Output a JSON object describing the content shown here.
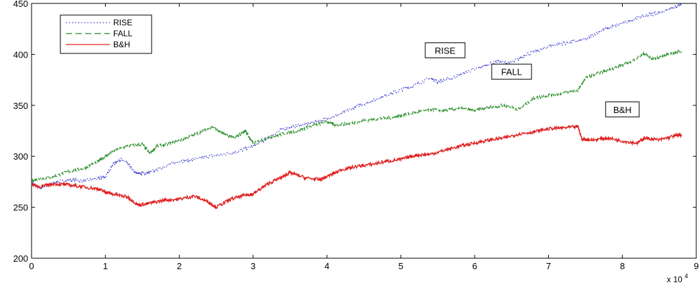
{
  "chart_data": {
    "type": "line",
    "title": "",
    "xlabel": "",
    "ylabel": "",
    "x_multiplier_label": "x 10",
    "x_multiplier_exponent": "4",
    "xlim": [
      0,
      9
    ],
    "ylim": [
      200,
      450
    ],
    "xticks": [
      "0",
      "1",
      "2",
      "3",
      "4",
      "5",
      "6",
      "7",
      "8",
      "9"
    ],
    "yticks": [
      "200",
      "250",
      "300",
      "350",
      "400",
      "450"
    ],
    "grid": false,
    "legend_position": "top-left",
    "series": [
      {
        "name": "RISE",
        "color": "#3333cc",
        "style": "dotted",
        "points": [
          [
            0,
            275
          ],
          [
            0.1,
            268
          ],
          [
            0.2,
            272
          ],
          [
            0.3,
            274
          ],
          [
            0.5,
            277
          ],
          [
            0.7,
            276
          ],
          [
            0.9,
            278
          ],
          [
            1.0,
            280
          ],
          [
            1.1,
            292
          ],
          [
            1.2,
            297
          ],
          [
            1.3,
            293
          ],
          [
            1.4,
            284
          ],
          [
            1.5,
            283
          ],
          [
            1.6,
            284
          ],
          [
            1.8,
            290
          ],
          [
            2.0,
            295
          ],
          [
            2.2,
            297
          ],
          [
            2.4,
            300
          ],
          [
            2.6,
            302
          ],
          [
            2.8,
            305
          ],
          [
            3.0,
            310
          ],
          [
            3.2,
            318
          ],
          [
            3.4,
            327
          ],
          [
            3.6,
            330
          ],
          [
            3.8,
            333
          ],
          [
            4.0,
            337
          ],
          [
            4.2,
            342
          ],
          [
            4.4,
            349
          ],
          [
            4.6,
            354
          ],
          [
            4.8,
            360
          ],
          [
            5.0,
            365
          ],
          [
            5.2,
            370
          ],
          [
            5.4,
            377
          ],
          [
            5.5,
            373
          ],
          [
            5.7,
            377
          ],
          [
            5.9,
            383
          ],
          [
            6.1,
            388
          ],
          [
            6.3,
            393
          ],
          [
            6.5,
            392
          ],
          [
            6.7,
            400
          ],
          [
            6.9,
            405
          ],
          [
            7.1,
            410
          ],
          [
            7.3,
            412
          ],
          [
            7.5,
            415
          ],
          [
            7.7,
            423
          ],
          [
            7.9,
            428
          ],
          [
            8.1,
            433
          ],
          [
            8.3,
            438
          ],
          [
            8.5,
            441
          ],
          [
            8.7,
            446
          ],
          [
            8.8,
            449
          ]
        ]
      },
      {
        "name": "FALL",
        "color": "#228b22",
        "style": "dashed",
        "points": [
          [
            0,
            276
          ],
          [
            0.1,
            278
          ],
          [
            0.3,
            280
          ],
          [
            0.5,
            285
          ],
          [
            0.7,
            288
          ],
          [
            0.9,
            295
          ],
          [
            1.0,
            300
          ],
          [
            1.1,
            305
          ],
          [
            1.3,
            310
          ],
          [
            1.5,
            312
          ],
          [
            1.6,
            303
          ],
          [
            1.7,
            310
          ],
          [
            1.9,
            313
          ],
          [
            2.1,
            318
          ],
          [
            2.3,
            324
          ],
          [
            2.45,
            329
          ],
          [
            2.6,
            322
          ],
          [
            2.75,
            318
          ],
          [
            2.9,
            325
          ],
          [
            2.95,
            318
          ],
          [
            3.0,
            313
          ],
          [
            3.2,
            318
          ],
          [
            3.4,
            322
          ],
          [
            3.6,
            325
          ],
          [
            3.8,
            330
          ],
          [
            4.0,
            334
          ],
          [
            4.1,
            331
          ],
          [
            4.3,
            332
          ],
          [
            4.5,
            335
          ],
          [
            4.7,
            337
          ],
          [
            4.9,
            338
          ],
          [
            5.0,
            340
          ],
          [
            5.2,
            343
          ],
          [
            5.4,
            346
          ],
          [
            5.6,
            345
          ],
          [
            5.8,
            347
          ],
          [
            6.0,
            345
          ],
          [
            6.2,
            348
          ],
          [
            6.4,
            350
          ],
          [
            6.6,
            346
          ],
          [
            6.8,
            357
          ],
          [
            7.0,
            360
          ],
          [
            7.2,
            362
          ],
          [
            7.4,
            365
          ],
          [
            7.5,
            377
          ],
          [
            7.7,
            382
          ],
          [
            7.9,
            387
          ],
          [
            8.1,
            392
          ],
          [
            8.3,
            401
          ],
          [
            8.4,
            395
          ],
          [
            8.6,
            400
          ],
          [
            8.8,
            403
          ]
        ]
      },
      {
        "name": "B&H",
        "color": "#e02020",
        "style": "solid",
        "points": [
          [
            0,
            273
          ],
          [
            0.1,
            270
          ],
          [
            0.3,
            273
          ],
          [
            0.5,
            272
          ],
          [
            0.7,
            270
          ],
          [
            0.9,
            268
          ],
          [
            1.0,
            265
          ],
          [
            1.1,
            263
          ],
          [
            1.3,
            260
          ],
          [
            1.45,
            252
          ],
          [
            1.6,
            254
          ],
          [
            1.8,
            257
          ],
          [
            2.0,
            258
          ],
          [
            2.2,
            261
          ],
          [
            2.4,
            255
          ],
          [
            2.5,
            250
          ],
          [
            2.7,
            258
          ],
          [
            2.9,
            262
          ],
          [
            3.0,
            263
          ],
          [
            3.2,
            273
          ],
          [
            3.4,
            280
          ],
          [
            3.5,
            284
          ],
          [
            3.7,
            279
          ],
          [
            3.9,
            277
          ],
          [
            4.0,
            280
          ],
          [
            4.2,
            287
          ],
          [
            4.4,
            290
          ],
          [
            4.6,
            292
          ],
          [
            4.8,
            295
          ],
          [
            5.0,
            297
          ],
          [
            5.2,
            301
          ],
          [
            5.4,
            302
          ],
          [
            5.6,
            306
          ],
          [
            5.8,
            310
          ],
          [
            6.0,
            313
          ],
          [
            6.2,
            316
          ],
          [
            6.4,
            318
          ],
          [
            6.6,
            322
          ],
          [
            6.8,
            324
          ],
          [
            7.0,
            327
          ],
          [
            7.2,
            328
          ],
          [
            7.4,
            329
          ],
          [
            7.45,
            317
          ],
          [
            7.6,
            316
          ],
          [
            7.8,
            318
          ],
          [
            8.0,
            315
          ],
          [
            8.2,
            313
          ],
          [
            8.3,
            318
          ],
          [
            8.5,
            316
          ],
          [
            8.7,
            320
          ],
          [
            8.8,
            321
          ]
        ]
      }
    ],
    "annotations": [
      {
        "text": "RISE",
        "x": 5.6,
        "y": 404
      },
      {
        "text": "FALL",
        "x": 6.5,
        "y": 383
      },
      {
        "text": "B&H",
        "x": 8.0,
        "y": 346
      }
    ]
  }
}
